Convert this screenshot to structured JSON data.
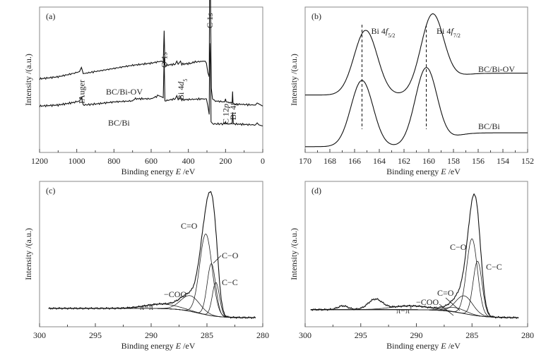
{
  "chart_data": [
    {
      "id": "a",
      "panel_label": "(a)",
      "type": "line",
      "title": "",
      "xlabel": "Binding energy",
      "xlabel_symbol": "E",
      "xlabel_unit": "/eV",
      "ylabel": "Intensity /(a.u.)",
      "xlim": [
        1200,
        0
      ],
      "x_reversed": true,
      "xticks": [
        1200,
        1000,
        800,
        600,
        400,
        200,
        0
      ],
      "xminor": [
        1100,
        900,
        700,
        500,
        300,
        100
      ],
      "series": [
        {
          "name": "BC/Bi-OV",
          "offset": 0.42,
          "points": [
            [
              1200,
              0.04
            ],
            [
              1100,
              0.06
            ],
            [
              1000,
              0.1
            ],
            [
              985,
              0.11
            ],
            [
              975,
              0.15
            ],
            [
              965,
              0.09
            ],
            [
              900,
              0.11
            ],
            [
              800,
              0.14
            ],
            [
              700,
              0.17
            ],
            [
              600,
              0.19
            ],
            [
              545,
              0.21
            ],
            [
              535,
              0.2
            ],
            [
              530,
              0.5
            ],
            [
              526,
              0.17
            ],
            [
              470,
              0.18
            ],
            [
              462,
              0.21
            ],
            [
              455,
              0.18
            ],
            [
              442,
              0.21
            ],
            [
              435,
              0.18
            ],
            [
              380,
              0.19
            ],
            [
              375,
              0.2
            ],
            [
              310,
              0.21
            ],
            [
              303,
              0.19
            ],
            [
              295,
              0.1
            ],
            [
              288,
              0.06
            ],
            [
              285,
              1.0
            ],
            [
              281,
              0.86
            ],
            [
              277,
              -0.05
            ],
            [
              270,
              -0.15
            ],
            [
              260,
              -0.17
            ],
            [
              205,
              -0.18
            ],
            [
              200,
              -0.15
            ],
            [
              197,
              -0.18
            ],
            [
              165,
              -0.19
            ],
            [
              162,
              -0.08
            ],
            [
              160,
              -0.19
            ],
            [
              150,
              -0.2
            ],
            [
              40,
              -0.21
            ],
            [
              30,
              -0.19
            ],
            [
              20,
              -0.2
            ],
            [
              0,
              -0.22
            ]
          ]
        },
        {
          "name": "BC/Bi",
          "offset": 0.0,
          "points": [
            [
              1200,
              0.2
            ],
            [
              1100,
              0.21
            ],
            [
              1000,
              0.24
            ],
            [
              985,
              0.25
            ],
            [
              975,
              0.28
            ],
            [
              965,
              0.21
            ],
            [
              900,
              0.22
            ],
            [
              800,
              0.24
            ],
            [
              700,
              0.25
            ],
            [
              690,
              0.27
            ],
            [
              600,
              0.27
            ],
            [
              560,
              0.3
            ],
            [
              545,
              0.29
            ],
            [
              535,
              0.28
            ],
            [
              530,
              0.66
            ],
            [
              526,
              0.25
            ],
            [
              470,
              0.27
            ],
            [
              462,
              0.3
            ],
            [
              455,
              0.26
            ],
            [
              442,
              0.29
            ],
            [
              435,
              0.26
            ],
            [
              310,
              0.27
            ],
            [
              303,
              0.27
            ],
            [
              295,
              0.2
            ],
            [
              288,
              0.12
            ],
            [
              285,
              0.8
            ],
            [
              281,
              0.6
            ],
            [
              278,
              0.05
            ],
            [
              270,
              0.03
            ],
            [
              205,
              0.03
            ],
            [
              200,
              0.05
            ],
            [
              197,
              0.03
            ],
            [
              165,
              0.03
            ],
            [
              162,
              0.14
            ],
            [
              158,
              0.03
            ],
            [
              40,
              0.02
            ],
            [
              30,
              0.04
            ],
            [
              20,
              0.02
            ],
            [
              0,
              0.01
            ]
          ]
        }
      ],
      "annotations": [
        {
          "text": "Auger",
          "prefix": "I",
          "x": 975,
          "rotated": true
        },
        {
          "text": "O 1",
          "italic": "s",
          "x": 530,
          "rotated": true
        },
        {
          "text": "Bi 4",
          "italic": "d",
          "sub": "5",
          "x": 440,
          "rotated": true
        },
        {
          "text": "C 1",
          "italic": "s",
          "x": 285,
          "rotated": true
        },
        {
          "text": "C 12",
          "italic": "p",
          "x": 200,
          "rotated": true
        },
        {
          "text": "Bi 4",
          "italic": "f",
          "x": 160,
          "rotated": true
        }
      ],
      "legend_labels": [
        "BC/Bi-OV",
        "BC/Bi"
      ]
    },
    {
      "id": "b",
      "panel_label": "(b)",
      "type": "line",
      "title": "",
      "xlabel": "Binding energy",
      "xlabel_symbol": "E",
      "xlabel_unit": "/eV",
      "ylabel": "Intensity /(a.u.)",
      "xlim": [
        170,
        152
      ],
      "x_reversed": true,
      "xticks": [
        170,
        168,
        166,
        164,
        162,
        160,
        158,
        156,
        154,
        152
      ],
      "xminor": [
        169,
        167,
        165,
        163,
        161,
        159,
        157,
        155,
        153
      ],
      "series": [
        {
          "name": "BC/Bi-OV",
          "baseline_high": 0.545,
          "baseline_low": 0.395,
          "peaks": [
            {
              "center": 165.1,
              "height": 0.445,
              "fwhm": 2.1
            },
            {
              "center": 159.7,
              "height": 0.545,
              "fwhm": 2.1
            }
          ]
        },
        {
          "name": "BC/Bi",
          "baseline_high": 0.135,
          "baseline_low": 0.04,
          "peaks": [
            {
              "center": 165.4,
              "height": 0.455,
              "fwhm": 2.0
            },
            {
              "center": 160.2,
              "height": 0.54,
              "fwhm": 2.0
            }
          ]
        }
      ],
      "reference_lines": [
        165.4,
        160.2
      ],
      "annotations": [
        {
          "text": "Bi 4",
          "italic": "f",
          "sub": "5/2",
          "x": 164.6
        },
        {
          "text": "Bi 4",
          "italic": "f",
          "sub": "7/2",
          "x": 159.6
        }
      ],
      "legend_labels": [
        "BC/Bi-OV",
        "BC/Bi"
      ]
    },
    {
      "id": "c",
      "panel_label": "(c)",
      "type": "line",
      "title": "",
      "xlabel": "Binding energy",
      "xlabel_symbol": "E",
      "xlabel_unit": "/eV",
      "ylabel": "Intensity /(a.u.)",
      "xlim": [
        300,
        280
      ],
      "x_reversed": true,
      "xticks": [
        300,
        295,
        290,
        285,
        280
      ],
      "xminor": [
        297.5,
        292.5,
        287.5,
        282.5
      ],
      "data_range": [
        299.2,
        280.6
      ],
      "background": {
        "high": 0.08,
        "low": 0.005,
        "step_center": 285.8,
        "step_width": 0.9
      },
      "components": [
        {
          "name": "C=O",
          "center": 285.1,
          "height": 0.62,
          "fwhm": 1.3
        },
        {
          "name": "C-O",
          "center": 284.6,
          "height": 0.4,
          "fwhm": 0.9
        },
        {
          "name": "C-C",
          "center": 284.2,
          "height": 0.26,
          "fwhm": 0.75
        },
        {
          "name": "-COO",
          "center": 286.5,
          "height": 0.12,
          "fwhm": 2.0
        },
        {
          "name": "π-π*",
          "center": 289.0,
          "height": 0.035,
          "fwhm": 3.5
        }
      ],
      "envelope_peak": {
        "center": 284.9,
        "height": 0.99
      },
      "annotations": [
        {
          "text": "C=O"
        },
        {
          "text": "C−O"
        },
        {
          "text": "C−C"
        },
        {
          "text": "−COO"
        },
        {
          "text": "π−π",
          "sup": "*"
        }
      ]
    },
    {
      "id": "d",
      "panel_label": "(d)",
      "type": "line",
      "title": "",
      "xlabel": "Binding energy",
      "xlabel_symbol": "E",
      "xlabel_unit": "/eV",
      "ylabel": "Intensity /(a.u.)",
      "xlim": [
        300,
        280
      ],
      "x_reversed": true,
      "xticks": [
        300,
        295,
        290,
        285,
        280
      ],
      "xminor": [
        297.5,
        292.5,
        287.5,
        282.5
      ],
      "data_range": [
        299.5,
        280.8
      ],
      "background": {
        "high": 0.07,
        "low": 0.005,
        "step_center": 285.7,
        "step_width": 1.0
      },
      "components": [
        {
          "name": "C-O",
          "center": 285.0,
          "height": 0.6,
          "fwhm": 1.15
        },
        {
          "name": "C-C",
          "center": 284.5,
          "height": 0.43,
          "fwhm": 0.95
        },
        {
          "name": "C=O",
          "center": 285.7,
          "height": 0.14,
          "fwhm": 1.8
        },
        {
          "name": "-COO",
          "center": 286.5,
          "height": 0.035,
          "fwhm": 2.2
        },
        {
          "name": "π-π*",
          "center": 290.5,
          "height": 0.03,
          "fwhm": 4.0
        }
      ],
      "extra_bumps": [
        {
          "center": 296.6,
          "height": 0.03,
          "fwhm": 1.1
        },
        {
          "center": 293.7,
          "height": 0.08,
          "fwhm": 1.5
        }
      ],
      "envelope_peak": {
        "center": 284.8,
        "height": 1.0
      },
      "annotations": [
        {
          "text": "C−O"
        },
        {
          "text": "C−C"
        },
        {
          "text": "C=O"
        },
        {
          "text": "−COO"
        },
        {
          "text": "π−π",
          "sup": "*"
        }
      ]
    }
  ]
}
